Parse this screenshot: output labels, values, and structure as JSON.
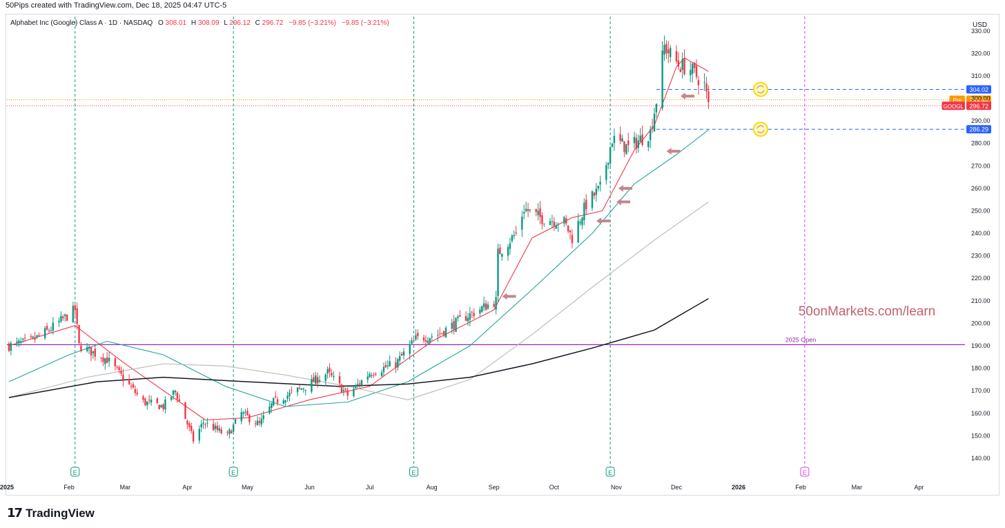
{
  "header": {
    "created_by": "50Pips created with TradingView.com, Dec 18, 2025 04:47 UTC-5"
  },
  "footer": {
    "brand": "TradingView"
  },
  "colors": {
    "up": "#089981",
    "down": "#f23645",
    "ema_fast": "#f23645",
    "ema_mid": "#1ea59a",
    "sma_slow": "#b8b8b8",
    "sma_long": "#131722",
    "year_open": "#9c27b0",
    "level": "#2962ff",
    "watermark": "#c2616b",
    "arrow": "#c2878e"
  },
  "chart_data": {
    "type": "candlestick",
    "title": "Alphabet Inc (Google) Class A · 1D · NASDAQ",
    "ohlc_readout": {
      "O_label": "O",
      "O": "308.01",
      "H_label": "H",
      "H": "308.09",
      "L_label": "L",
      "L": "296.12",
      "C_label": "C",
      "C": "296.72",
      "change": "−9.85 (−3.21%)",
      "change2": "−9.85 (−3.21%)"
    },
    "currency": "USD",
    "y_range": [
      132,
      337
    ],
    "y_ticks": [
      140,
      150,
      160,
      170,
      180,
      190,
      200,
      210,
      220,
      230,
      240,
      250,
      260,
      270,
      280,
      290,
      300,
      310,
      320,
      330
    ],
    "y_tick_labels": [
      "140.00",
      "150.00",
      "160.00",
      "170.00",
      "180.00",
      "190.00",
      "200.00",
      "210.00",
      "220.00",
      "230.00",
      "240.00",
      "250.00",
      "260.00",
      "270.00",
      "280.00",
      "290.00",
      "300.00",
      "310.00",
      "320.00",
      "330.00"
    ],
    "x_range": [
      "2025-01-01",
      "2026-04-15"
    ],
    "x_ticks": [
      {
        "date": "2025-01-01",
        "label": "2025",
        "bold": true
      },
      {
        "date": "2025-02-01",
        "label": "Feb"
      },
      {
        "date": "2025-03-01",
        "label": "Mar"
      },
      {
        "date": "2025-04-01",
        "label": "Apr"
      },
      {
        "date": "2025-05-01",
        "label": "May"
      },
      {
        "date": "2025-06-01",
        "label": "Jun"
      },
      {
        "date": "2025-07-01",
        "label": "Jul"
      },
      {
        "date": "2025-08-01",
        "label": "Aug"
      },
      {
        "date": "2025-09-01",
        "label": "Sep"
      },
      {
        "date": "2025-10-01",
        "label": "Oct"
      },
      {
        "date": "2025-11-01",
        "label": "Nov"
      },
      {
        "date": "2025-12-01",
        "label": "Dec"
      },
      {
        "date": "2026-01-01",
        "label": "2026",
        "bold": true
      },
      {
        "date": "2026-02-01",
        "label": "Feb"
      },
      {
        "date": "2026-03-01",
        "label": "Mar"
      },
      {
        "date": "2026-04-01",
        "label": "Apr"
      }
    ],
    "price_path": [
      [
        "2025-01-02",
        190
      ],
      [
        "2025-01-13",
        192
      ],
      [
        "2025-01-22",
        197
      ],
      [
        "2025-02-04",
        206
      ],
      [
        "2025-02-06",
        190
      ],
      [
        "2025-02-20",
        184
      ],
      [
        "2025-03-10",
        165
      ],
      [
        "2025-03-20",
        163
      ],
      [
        "2025-03-26",
        170
      ],
      [
        "2025-04-04",
        148
      ],
      [
        "2025-04-09",
        156
      ],
      [
        "2025-04-21",
        150
      ],
      [
        "2025-04-28",
        160
      ],
      [
        "2025-05-07",
        155
      ],
      [
        "2025-05-14",
        165
      ],
      [
        "2025-05-21",
        168
      ],
      [
        "2025-05-30",
        172
      ],
      [
        "2025-06-10",
        178
      ],
      [
        "2025-06-20",
        168
      ],
      [
        "2025-07-01",
        178
      ],
      [
        "2025-07-14",
        182
      ],
      [
        "2025-07-24",
        193
      ],
      [
        "2025-08-04",
        195
      ],
      [
        "2025-08-18",
        203
      ],
      [
        "2025-09-02",
        210
      ],
      [
        "2025-09-03",
        231
      ],
      [
        "2025-09-12",
        240
      ],
      [
        "2025-09-16",
        251
      ],
      [
        "2025-09-24",
        247
      ],
      [
        "2025-10-06",
        245
      ],
      [
        "2025-10-10",
        238
      ],
      [
        "2025-10-17",
        253
      ],
      [
        "2025-10-24",
        260
      ],
      [
        "2025-10-30",
        282
      ],
      [
        "2025-11-07",
        278
      ],
      [
        "2025-11-18",
        285
      ],
      [
        "2025-11-21",
        299
      ],
      [
        "2025-11-24",
        318
      ],
      [
        "2025-11-25",
        323
      ],
      [
        "2025-12-02",
        315
      ],
      [
        "2025-12-08",
        313
      ],
      [
        "2025-12-12",
        309
      ],
      [
        "2025-12-15",
        306
      ],
      [
        "2025-12-17",
        296.72
      ]
    ],
    "moving_averages": [
      {
        "name": "ema_fast",
        "color": "#f23645",
        "points": [
          [
            "2025-01-02",
            190
          ],
          [
            "2025-02-04",
            199
          ],
          [
            "2025-03-01",
            182
          ],
          [
            "2025-04-10",
            157
          ],
          [
            "2025-05-01",
            158
          ],
          [
            "2025-06-01",
            166
          ],
          [
            "2025-07-01",
            172
          ],
          [
            "2025-08-01",
            192
          ],
          [
            "2025-09-01",
            206
          ],
          [
            "2025-09-20",
            238
          ],
          [
            "2025-10-10",
            247
          ],
          [
            "2025-10-25",
            250
          ],
          [
            "2025-11-10",
            277
          ],
          [
            "2025-11-20",
            288
          ],
          [
            "2025-12-01",
            314
          ],
          [
            "2025-12-05",
            318
          ],
          [
            "2025-12-17",
            312
          ]
        ]
      },
      {
        "name": "ema_mid",
        "color": "#1ea59a",
        "points": [
          [
            "2025-01-02",
            174
          ],
          [
            "2025-02-01",
            186
          ],
          [
            "2025-02-20",
            192
          ],
          [
            "2025-03-20",
            186
          ],
          [
            "2025-04-20",
            172
          ],
          [
            "2025-05-20",
            163
          ],
          [
            "2025-06-20",
            165
          ],
          [
            "2025-07-20",
            174
          ],
          [
            "2025-08-20",
            190
          ],
          [
            "2025-09-20",
            215
          ],
          [
            "2025-10-20",
            240
          ],
          [
            "2025-11-10",
            262
          ],
          [
            "2025-12-01",
            275
          ],
          [
            "2025-12-17",
            286
          ]
        ]
      },
      {
        "name": "sma_slow",
        "color": "#b8b8b8",
        "points": [
          [
            "2025-01-02",
            167
          ],
          [
            "2025-02-10",
            176
          ],
          [
            "2025-03-20",
            182
          ],
          [
            "2025-04-20",
            181
          ],
          [
            "2025-05-20",
            177
          ],
          [
            "2025-06-20",
            172
          ],
          [
            "2025-07-20",
            166
          ],
          [
            "2025-08-20",
            175
          ],
          [
            "2025-09-20",
            195
          ],
          [
            "2025-10-20",
            216
          ],
          [
            "2025-11-20",
            237
          ],
          [
            "2025-12-17",
            254
          ]
        ]
      },
      {
        "name": "sma_long",
        "color": "#131722",
        "points": [
          [
            "2025-01-02",
            167
          ],
          [
            "2025-02-15",
            174
          ],
          [
            "2025-03-20",
            176
          ],
          [
            "2025-05-01",
            174
          ],
          [
            "2025-06-15",
            172
          ],
          [
            "2025-07-20",
            173
          ],
          [
            "2025-08-20",
            176
          ],
          [
            "2025-09-20",
            182
          ],
          [
            "2025-10-20",
            189
          ],
          [
            "2025-11-20",
            197
          ],
          [
            "2025-12-17",
            211
          ]
        ]
      }
    ],
    "horizontal_lines": [
      {
        "name": "2025 Open",
        "value": 190.5,
        "color": "#9c27b0",
        "label": "2025 Open"
      },
      {
        "name": "level-upper",
        "value": 304.02,
        "color": "#2962ff",
        "from": "2025-11-21",
        "label": "304.02"
      },
      {
        "name": "level-lower",
        "value": 286.29,
        "color": "#2962ff",
        "from": "2025-11-21",
        "label": "286.29"
      },
      {
        "name": "pre-market",
        "value": 299.4,
        "color": "#ff9800",
        "label": "299.40",
        "tag": "Pre"
      },
      {
        "name": "last-close",
        "value": 296.72,
        "color": "#f23645",
        "label": "296.72",
        "tag": "GOOGL"
      }
    ],
    "earnings_lines": [
      {
        "date": "2025-02-04",
        "marker": "E",
        "color": "#089981"
      },
      {
        "date": "2025-04-24",
        "marker": "E",
        "color": "#089981"
      },
      {
        "date": "2025-07-23",
        "marker": "E",
        "color": "#089981"
      },
      {
        "date": "2025-10-29",
        "marker": "E",
        "color": "#089981"
      },
      {
        "date": "2026-02-03",
        "marker": "E",
        "color": "#e040fb",
        "future": true
      }
    ],
    "arrows": [
      {
        "date": "2025-09-03",
        "value": 212
      },
      {
        "date": "2025-10-20",
        "value": 245.5
      },
      {
        "date": "2025-10-30",
        "value": 254
      },
      {
        "date": "2025-10-31",
        "value": 260
      },
      {
        "date": "2025-11-24",
        "value": 276.5
      },
      {
        "date": "2025-12-01",
        "value": 301
      }
    ],
    "cycle_icons": [
      {
        "date": "2026-01-12",
        "value": 304.02
      },
      {
        "date": "2026-01-12",
        "value": 286.29
      }
    ],
    "watermark": "50onMarkets.com/learn"
  }
}
